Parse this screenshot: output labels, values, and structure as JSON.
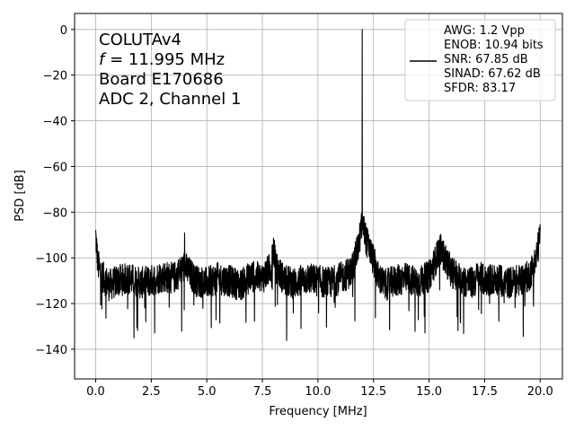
{
  "chart_data": {
    "type": "line",
    "xlabel": "Frequency [MHz]",
    "ylabel": "PSD [dB]",
    "xlim": [
      -0.95,
      21.0
    ],
    "ylim": [
      -153,
      7
    ],
    "xticks": [
      0.0,
      2.5,
      5.0,
      7.5,
      10.0,
      12.5,
      15.0,
      17.5,
      20.0
    ],
    "xtick_labels": [
      "0.0",
      "2.5",
      "5.0",
      "7.5",
      "10.0",
      "12.5",
      "15.0",
      "17.5",
      "20.0"
    ],
    "yticks": [
      0,
      -20,
      -40,
      -60,
      -80,
      -100,
      -120,
      -140
    ],
    "ytick_labels": [
      "0",
      "−20",
      "−40",
      "−60",
      "−80",
      "−100",
      "−120",
      "−140"
    ],
    "grid": true,
    "line_color": "#000000",
    "annotation_lines": [
      "COLUTAv4",
      "f = 11.995 MHz",
      "Board E170686",
      "ADC 2, Channel 1"
    ],
    "legend_placement": "top-right",
    "legend_lines": [
      "AWG: 1.2 Vpp",
      "ENOB: 10.94 bits",
      "SNR: 67.85 dB",
      "SINAD: 67.62 dB",
      "SFDR: 83.17"
    ],
    "series": [
      {
        "name": "",
        "peak": {
          "x": 11.995,
          "y": 0
        },
        "noise_floor": -110,
        "x": [
          0.0,
          0.1,
          0.3,
          0.6,
          1.0,
          1.5,
          2.0,
          2.5,
          3.0,
          3.5,
          3.99,
          4.0,
          4.01,
          4.5,
          5.0,
          5.5,
          6.0,
          6.5,
          7.0,
          7.5,
          7.9,
          8.0,
          8.1,
          8.5,
          9.0,
          9.5,
          10.0,
          10.5,
          11.0,
          11.5,
          11.8,
          11.99,
          11.995,
          12.0,
          12.2,
          12.5,
          12.7,
          13.0,
          13.5,
          14.0,
          14.5,
          15.0,
          15.5,
          16.0,
          16.5,
          17.0,
          17.2,
          17.5,
          18.0,
          18.5,
          19.0,
          19.5,
          19.8,
          20.0
        ],
        "y": [
          -90,
          -103,
          -108,
          -112,
          -110,
          -109,
          -111,
          -110,
          -108,
          -109,
          -104,
          -83,
          -104,
          -110,
          -111,
          -109,
          -110,
          -112,
          -108,
          -109,
          -104,
          -95,
          -104,
          -110,
          -111,
          -109,
          -110,
          -111,
          -109,
          -106,
          -96,
          -85,
          0,
          -85,
          -93,
          -101,
          -108,
          -112,
          -110,
          -109,
          -111,
          -108,
          -96,
          -106,
          -110,
          -111,
          -108,
          -110,
          -109,
          -111,
          -110,
          -108,
          -101,
          -90
        ]
      }
    ]
  }
}
